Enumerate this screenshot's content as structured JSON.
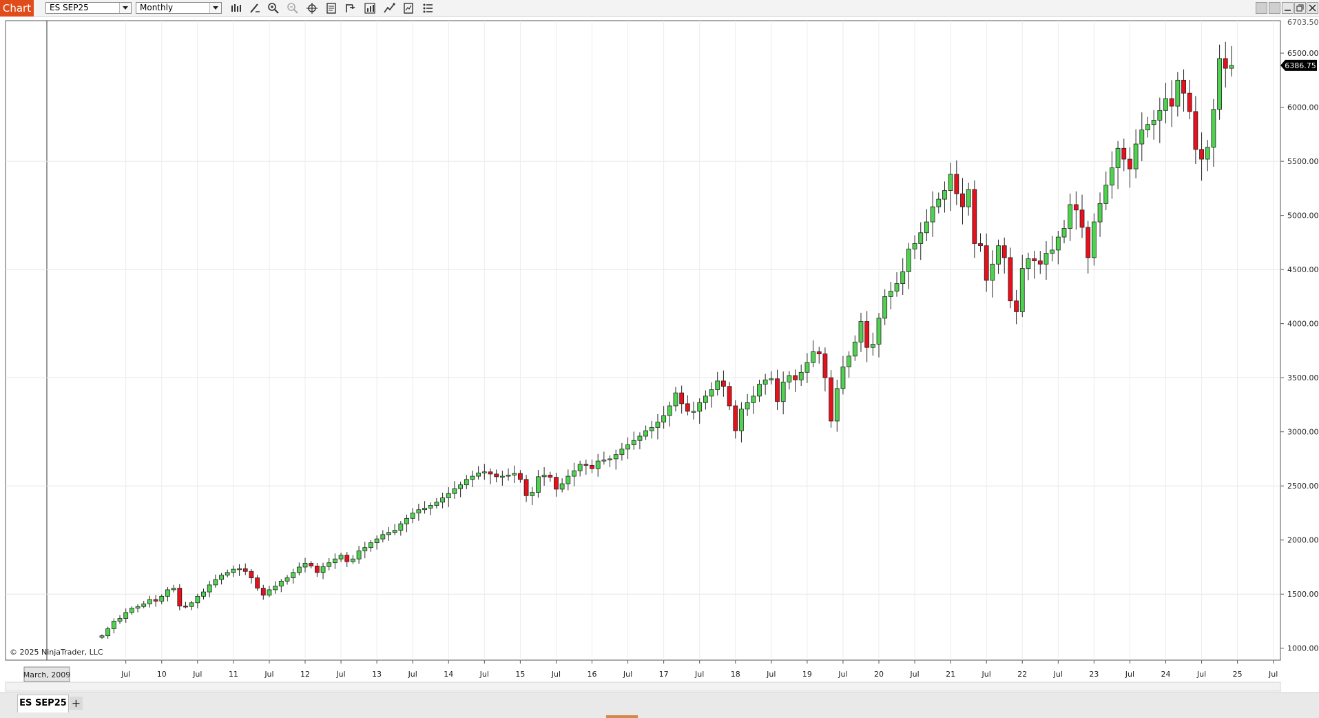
{
  "window": {
    "tab_label": "Chart",
    "instrument": "ES SEP25",
    "period": "Monthly"
  },
  "toolbar_icons": [
    "bar-type-icon",
    "draw-pen-icon",
    "zoom-in-icon",
    "zoom-out-icon",
    "crosshair-icon",
    "data-box-icon",
    "chart-trader-icon",
    "indicators-icon",
    "strategies-icon",
    "templates-icon",
    "properties-icon"
  ],
  "footer": {
    "tabs": [
      {
        "label": "ES SEP25"
      }
    ],
    "add_label": "+"
  },
  "chart_data": {
    "type": "candlestick",
    "instrument": "ES SEP25",
    "copyright": "© 2025 NinjaTrader, LLC",
    "start_label": "March, 2009",
    "last_price_label": "6386.75",
    "top_partial_label": "6703.50",
    "ylim": [
      890,
      6800
    ],
    "y_ticks": [
      1000,
      1500,
      2000,
      2500,
      3000,
      3500,
      4000,
      4500,
      5000,
      5500,
      6000,
      6500
    ],
    "y_tick_labels": [
      "1000.00",
      "1500.00",
      "2000.00",
      "2500.00",
      "3000.00",
      "3500.00",
      "4000.00",
      "4500.00",
      "5000.00",
      "5500.00",
      "6000.00",
      "6500.00"
    ],
    "x_ticks": [
      {
        "label": "Jul",
        "month": 4
      },
      {
        "label": "10",
        "month": 10
      },
      {
        "label": "Jul",
        "month": 16
      },
      {
        "label": "11",
        "month": 22
      },
      {
        "label": "Jul",
        "month": 28
      },
      {
        "label": "12",
        "month": 34
      },
      {
        "label": "Jul",
        "month": 40
      },
      {
        "label": "13",
        "month": 46
      },
      {
        "label": "Jul",
        "month": 52
      },
      {
        "label": "14",
        "month": 58
      },
      {
        "label": "Jul",
        "month": 64
      },
      {
        "label": "15",
        "month": 70
      },
      {
        "label": "Jul",
        "month": 76
      },
      {
        "label": "16",
        "month": 82
      },
      {
        "label": "Jul",
        "month": 88
      },
      {
        "label": "17",
        "month": 94
      },
      {
        "label": "Jul",
        "month": 100
      },
      {
        "label": "18",
        "month": 106
      },
      {
        "label": "Jul",
        "month": 112
      },
      {
        "label": "19",
        "month": 118
      },
      {
        "label": "Jul",
        "month": 124
      },
      {
        "label": "20",
        "month": 130
      },
      {
        "label": "Jul",
        "month": 136
      },
      {
        "label": "21",
        "month": 142
      },
      {
        "label": "Jul",
        "month": 148
      },
      {
        "label": "22",
        "month": 154
      },
      {
        "label": "Jul",
        "month": 160
      },
      {
        "label": "23",
        "month": 166
      },
      {
        "label": "Jul",
        "month": 172
      },
      {
        "label": "24",
        "month": 178
      },
      {
        "label": "Jul",
        "month": 184
      },
      {
        "label": "25",
        "month": 190
      },
      {
        "label": "Jul",
        "month": 196
      }
    ],
    "closes": [
      1115,
      1180,
      1250,
      1275,
      1330,
      1370,
      1385,
      1410,
      1450,
      1435,
      1480,
      1540,
      1555,
      1390,
      1385,
      1420,
      1480,
      1520,
      1585,
      1635,
      1675,
      1700,
      1730,
      1735,
      1710,
      1650,
      1555,
      1490,
      1540,
      1575,
      1620,
      1650,
      1700,
      1750,
      1785,
      1760,
      1700,
      1755,
      1790,
      1825,
      1860,
      1800,
      1825,
      1900,
      1930,
      1975,
      2010,
      2050,
      2070,
      2090,
      2150,
      2200,
      2250,
      2280,
      2295,
      2320,
      2350,
      2390,
      2430,
      2475,
      2510,
      2560,
      2590,
      2620,
      2630,
      2610,
      2585,
      2590,
      2600,
      2615,
      2560,
      2410,
      2440,
      2585,
      2600,
      2580,
      2470,
      2520,
      2590,
      2640,
      2700,
      2690,
      2660,
      2730,
      2740,
      2750,
      2790,
      2840,
      2880,
      2920,
      2960,
      3010,
      3040,
      3090,
      3150,
      3240,
      3360,
      3260,
      3190,
      3190,
      3270,
      3330,
      3390,
      3470,
      3420,
      3240,
      3010,
      3210,
      3270,
      3330,
      3440,
      3480,
      3490,
      3280,
      3460,
      3520,
      3480,
      3550,
      3640,
      3740,
      3720,
      3500,
      3100,
      3400,
      3600,
      3700,
      3830,
      4020,
      3780,
      3810,
      4050,
      4250,
      4300,
      4370,
      4480,
      4690,
      4740,
      4840,
      4940,
      5080,
      5150,
      5230,
      5380,
      5200,
      5080,
      5240,
      4740,
      4720,
      4400,
      4550,
      4720,
      4610,
      4210,
      4110,
      4510,
      4600,
      4580,
      4550,
      4650,
      4680,
      4800,
      4880,
      5100,
      5050,
      4890,
      4610,
      4940,
      5110,
      5280,
      5440,
      5620,
      5520,
      5430,
      5660,
      5790,
      5840,
      5880,
      5970,
      6080,
      6010,
      6250,
      6130,
      5960,
      5610,
      5520,
      5630,
      5980,
      6450,
      6360,
      6386.75
    ]
  }
}
